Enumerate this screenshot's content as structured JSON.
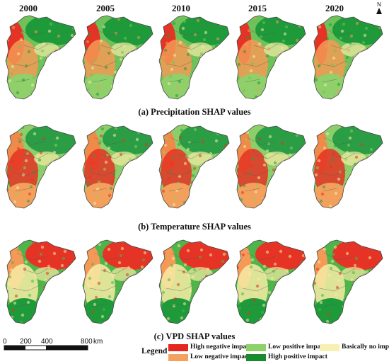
{
  "years": [
    "2000",
    "2005",
    "2010",
    "2015",
    "2020"
  ],
  "north_label": "N",
  "rows": [
    {
      "id": "precip",
      "caption": "(a) Precipitation SHAP values",
      "base": "#6fc25a",
      "north": "#1e9a3a",
      "west": "#e53325",
      "west2": "#f59a56",
      "south": "#8fd06a",
      "center": "#f6eba5"
    },
    {
      "id": "temp",
      "caption": "(b) Temperature SHAP values",
      "base": "#8ccf6a",
      "north": "#2a9d45",
      "west": "#f08a48",
      "west2": "#e53325",
      "south": "#f2a05c",
      "center": "#f6eba5"
    },
    {
      "id": "vpd",
      "caption": "(c) VPD SHAP values",
      "base": "#4fb54a",
      "north": "#e53325",
      "west": "#f59a56",
      "west2": "#f6eba5",
      "south": "#1e9a3a",
      "center": "#f6eba5"
    }
  ],
  "legend": {
    "title": "Legend",
    "items": [
      {
        "label": "High negative impact",
        "color": "#e5261f"
      },
      {
        "label": "Low negative impact",
        "color": "#f4a15f"
      },
      {
        "label": "Low positive impact",
        "color": "#8fd06a"
      },
      {
        "label": "High positive impact",
        "color": "#1a8a2e"
      },
      {
        "label": "Basically no impact",
        "color": "#f7f0b2"
      }
    ]
  },
  "scale": {
    "ticks": [
      "0",
      "200",
      "400",
      "800"
    ],
    "unit": "km"
  }
}
